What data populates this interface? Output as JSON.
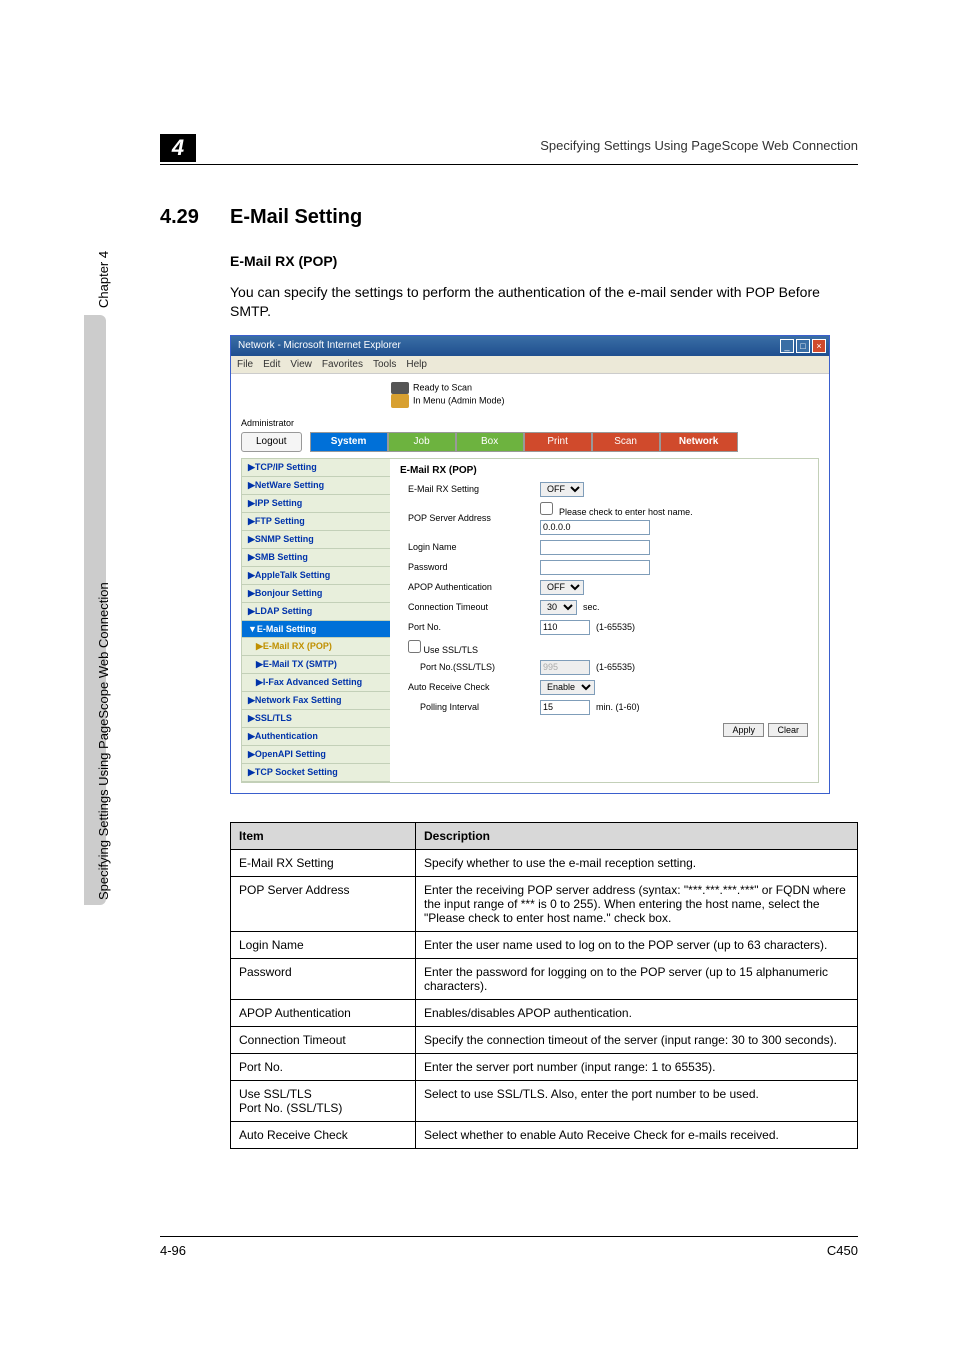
{
  "header": {
    "chapter_num": "4",
    "right_text": "Specifying Settings Using PageScope Web Connection"
  },
  "section": {
    "num": "4.29",
    "title": "E-Mail Setting",
    "subtitle": "E-Mail RX (POP)",
    "intro": "You can specify the settings to perform the authentication of the e-mail sender with POP Before SMTP."
  },
  "browser": {
    "title": "Network - Microsoft Internet Explorer",
    "menus": [
      "File",
      "Edit",
      "View",
      "Favorites",
      "Tools",
      "Help"
    ],
    "status_ready": "Ready to Scan",
    "status_menu": "In Menu (Admin Mode)",
    "admin": "Administrator",
    "tabs": {
      "logout": "Logout",
      "system": "System",
      "job": "Job",
      "box": "Box",
      "print": "Print",
      "scan": "Scan",
      "network": "Network"
    },
    "sidebar": [
      {
        "label": "▶TCP/IP Setting",
        "cls": ""
      },
      {
        "label": "▶NetWare Setting",
        "cls": ""
      },
      {
        "label": "▶IPP Setting",
        "cls": ""
      },
      {
        "label": "▶FTP Setting",
        "cls": ""
      },
      {
        "label": "▶SNMP Setting",
        "cls": ""
      },
      {
        "label": "▶SMB Setting",
        "cls": ""
      },
      {
        "label": "▶AppleTalk Setting",
        "cls": ""
      },
      {
        "label": "▶Bonjour Setting",
        "cls": ""
      },
      {
        "label": "▶LDAP Setting",
        "cls": ""
      },
      {
        "label": "▼E-Mail Setting",
        "cls": "selected"
      }
    ],
    "sidebar_sub": [
      {
        "label": "▶E-Mail RX (POP)",
        "cls": "current"
      },
      {
        "label": "▶E-Mail TX (SMTP)",
        "cls": ""
      },
      {
        "label": "▶I-Fax Advanced Setting",
        "cls": ""
      }
    ],
    "sidebar_rest": [
      "▶Network Fax Setting",
      "▶SSL/TLS",
      "▶Authentication",
      "▶OpenAPI Setting",
      "▶TCP Socket Setting"
    ],
    "panel": {
      "title": "E-Mail RX (POP)",
      "rows": [
        {
          "label": "E-Mail RX Setting",
          "type": "select",
          "value": "OFF"
        },
        {
          "label": "POP Server Address",
          "type": "check_text",
          "check_label": "Please check to enter host name.",
          "value": "0.0.0.0"
        },
        {
          "label": "Login Name",
          "type": "text",
          "value": ""
        },
        {
          "label": "Password",
          "type": "text",
          "value": ""
        },
        {
          "label": "APOP Authentication",
          "type": "select",
          "value": "OFF"
        },
        {
          "label": "Connection Timeout",
          "type": "select_unit",
          "value": "30",
          "unit": "sec."
        },
        {
          "label": "Port No.",
          "type": "text_range",
          "value": "110",
          "range": "(1-65535)"
        },
        {
          "label": "Use SSL/TLS",
          "type": "checkbox_only"
        },
        {
          "label": "Port No.(SSL/TLS)",
          "type": "text_range_disabled",
          "value": "995",
          "range": "(1-65535)",
          "indent": true
        },
        {
          "label": "Auto Receive Check",
          "type": "select",
          "value": "Enable"
        },
        {
          "label": "Polling Interval",
          "type": "text_range",
          "value": "15",
          "range": "min. (1-60)",
          "indent": true
        }
      ],
      "apply": "Apply",
      "clear": "Clear"
    }
  },
  "table": {
    "head_item": "Item",
    "head_desc": "Description",
    "rows": [
      {
        "item": "E-Mail RX Setting",
        "desc": "Specify whether to use the e-mail reception setting."
      },
      {
        "item": "POP Server Address",
        "desc": "Enter the receiving POP server address (syntax: \"***.***.***.***\" or FQDN where the input range of *** is 0 to 255). When entering the host name, select the \"Please check to enter host name.\" check box."
      },
      {
        "item": "Login Name",
        "desc": "Enter the user name used to log on to the POP server (up to 63 characters)."
      },
      {
        "item": "Password",
        "desc": "Enter the password for logging on to the POP server (up to 15 alphanumeric characters)."
      },
      {
        "item": "APOP Authentication",
        "desc": "Enables/disables APOP authentication."
      },
      {
        "item": "Connection Timeout",
        "desc": "Specify the connection timeout of the server (input range: 30 to 300 seconds)."
      },
      {
        "item": "Port No.",
        "desc": "Enter the server port number (input range: 1 to 65535)."
      },
      {
        "item": "Use SSL/TLS\nPort No. (SSL/TLS)",
        "desc": "Select to use SSL/TLS. Also, enter the port number to be used."
      },
      {
        "item": "Auto Receive Check",
        "desc": "Select whether to enable Auto Receive Check for e-mails received."
      }
    ]
  },
  "side": {
    "chapter": "Chapter 4",
    "text": "Specifying Settings Using PageScope Web Connection"
  },
  "footer": {
    "left": "4-96",
    "right": "C450"
  }
}
